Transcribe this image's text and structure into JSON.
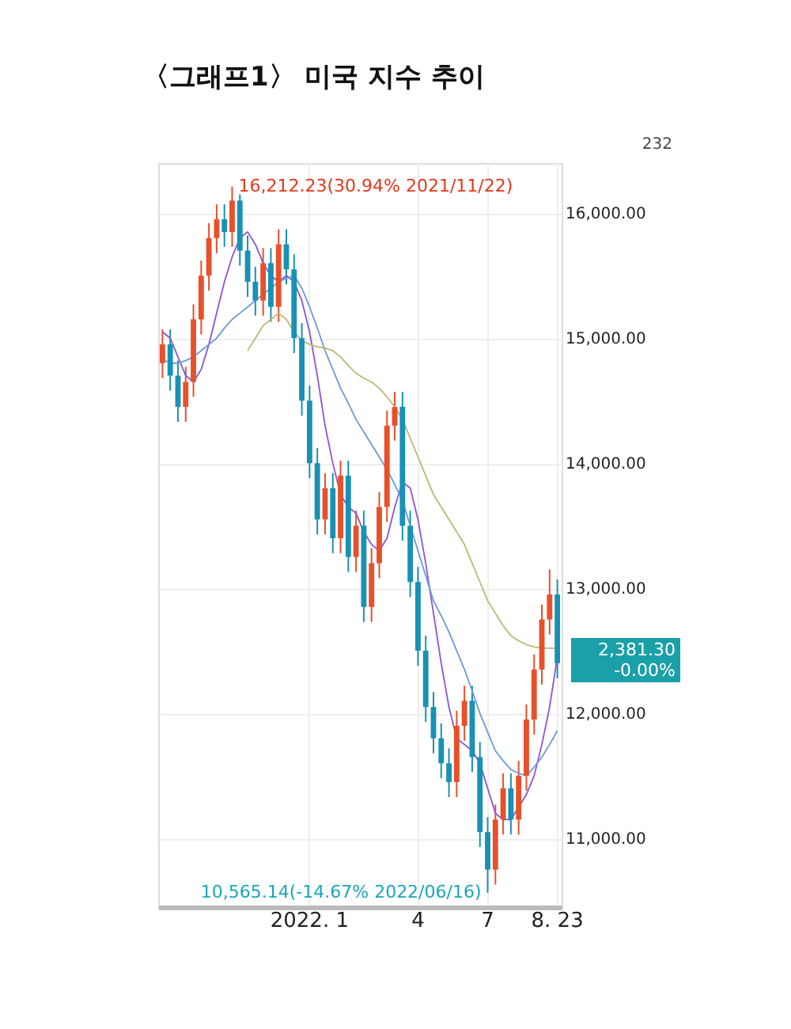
{
  "chart_data": {
    "type": "candlestick",
    "title": "〈그래프1〉 미국 지수 추이",
    "categories": [
      null,
      null,
      null,
      null,
      null,
      null,
      null,
      null,
      null,
      null,
      null,
      null,
      null,
      null,
      null,
      null,
      null,
      null,
      null,
      "2022. 1",
      null,
      null,
      null,
      null,
      null,
      null,
      null,
      null,
      null,
      null,
      null,
      null,
      null,
      "4",
      null,
      null,
      null,
      null,
      null,
      null,
      null,
      null,
      "7",
      null,
      null,
      null,
      null,
      null,
      null,
      null,
      null,
      "8. 23"
    ],
    "ohlc": [
      [
        14800,
        15070,
        14680,
        14950
      ],
      [
        14950,
        15070,
        14580,
        14700
      ],
      [
        14700,
        14820,
        14330,
        14450
      ],
      [
        14450,
        14770,
        14330,
        14650
      ],
      [
        14650,
        15270,
        14530,
        15150
      ],
      [
        15150,
        15620,
        15030,
        15500
      ],
      [
        15500,
        15920,
        15380,
        15800
      ],
      [
        15800,
        16070,
        15680,
        15950
      ],
      [
        15950,
        16070,
        15730,
        15850
      ],
      [
        15850,
        16212.23,
        15730,
        16100
      ],
      [
        16100,
        16150,
        15580,
        15700
      ],
      [
        15700,
        15820,
        15330,
        15450
      ],
      [
        15450,
        15570,
        15180,
        15300
      ],
      [
        15300,
        15720,
        15180,
        15600
      ],
      [
        15600,
        15720,
        15130,
        15250
      ],
      [
        15250,
        15870,
        15130,
        15750
      ],
      [
        15750,
        15870,
        15430,
        15550
      ],
      [
        15550,
        15670,
        14880,
        15000
      ],
      [
        15000,
        15120,
        14380,
        14500
      ],
      [
        14500,
        14620,
        13880,
        14000
      ],
      [
        14000,
        14120,
        13430,
        13550
      ],
      [
        13550,
        13920,
        13430,
        13800
      ],
      [
        13800,
        13920,
        13280,
        13400
      ],
      [
        13400,
        14020,
        13280,
        13900
      ],
      [
        13900,
        14020,
        13130,
        13250
      ],
      [
        13250,
        13620,
        13130,
        13500
      ],
      [
        13500,
        13620,
        12730,
        12850
      ],
      [
        12850,
        13320,
        12730,
        13200
      ],
      [
        13200,
        13770,
        13080,
        13650
      ],
      [
        13650,
        14420,
        13530,
        14300
      ],
      [
        14300,
        14570,
        14180,
        14450
      ],
      [
        14450,
        14570,
        13380,
        13500
      ],
      [
        13500,
        13620,
        12930,
        13050
      ],
      [
        13050,
        13170,
        12380,
        12500
      ],
      [
        12500,
        12620,
        11930,
        12050
      ],
      [
        12050,
        12170,
        11680,
        11800
      ],
      [
        11800,
        11920,
        11480,
        11600
      ],
      [
        11600,
        11720,
        11330,
        11450
      ],
      [
        11450,
        12020,
        11330,
        11900
      ],
      [
        11900,
        12220,
        11780,
        12100
      ],
      [
        12100,
        12220,
        11530,
        11650
      ],
      [
        11650,
        11770,
        10930,
        11050
      ],
      [
        11050,
        11170,
        10565.14,
        10750
      ],
      [
        10750,
        11270,
        10630,
        11150
      ],
      [
        11150,
        11520,
        11030,
        11400
      ],
      [
        11400,
        11520,
        11030,
        11150
      ],
      [
        11150,
        11620,
        11030,
        11500
      ],
      [
        11500,
        12070,
        11380,
        11950
      ],
      [
        11950,
        12470,
        11830,
        12350
      ],
      [
        12350,
        12870,
        12230,
        12750
      ],
      [
        12750,
        13150,
        12630,
        12950
      ],
      [
        12950,
        13070,
        12280,
        12400
      ]
    ],
    "colors": [
      "#e8502a",
      "#1991b5",
      "#1991b5",
      "#e8502a",
      "#e8502a",
      "#e8502a",
      "#e8502a",
      "#e8502a",
      "#1991b5",
      "#e8502a",
      "#1991b5",
      "#1991b5",
      "#1991b5",
      "#e8502a",
      "#1991b5",
      "#e8502a",
      "#1991b5",
      "#1991b5",
      "#1991b5",
      "#1991b5",
      "#1991b5",
      "#e8502a",
      "#1991b5",
      "#e8502a",
      "#1991b5",
      "#e8502a",
      "#1991b5",
      "#e8502a",
      "#e8502a",
      "#e8502a",
      "#e8502a",
      "#1991b5",
      "#1991b5",
      "#1991b5",
      "#1991b5",
      "#1991b5",
      "#1991b5",
      "#1991b5",
      "#e8502a",
      "#e8502a",
      "#1991b5",
      "#1991b5",
      "#1991b5",
      "#e8502a",
      "#e8502a",
      "#1991b5",
      "#e8502a",
      "#e8502a",
      "#e8502a",
      "#e8502a",
      "#e8502a",
      "#1991b5"
    ],
    "series": [
      {
        "type": "line",
        "color": "#8a55d6",
        "values": [
          15050,
          15000,
          14850,
          14700,
          14650,
          14750,
          14950,
          15200,
          15450,
          15650,
          15800,
          15850,
          15750,
          15600,
          15500,
          15450,
          15500,
          15450,
          15300,
          15050,
          14700,
          14300,
          14000,
          13750,
          13650,
          13600,
          13450,
          13350,
          13300,
          13400,
          13650,
          13850,
          13800,
          13550,
          13200,
          12800,
          12400,
          12050,
          11800,
          11750,
          11700,
          11600,
          11400,
          11200,
          11150,
          11150,
          11250,
          11350,
          11500,
          11750,
          12050,
          12450
        ]
      },
      {
        "type": "line",
        "color": "#6a9ad8",
        "values": [
          14830,
          14800,
          14800,
          14820,
          14850,
          14900,
          14950,
          15000,
          15080,
          15150,
          15200,
          15250,
          15300,
          15350,
          15400,
          15450,
          15480,
          15500,
          15400,
          15250,
          15080,
          14900,
          14750,
          14600,
          14480,
          14350,
          14250,
          14150,
          14050,
          13950,
          13830,
          13700,
          13500,
          13300,
          13100,
          12900,
          12780,
          12650,
          12500,
          12350,
          12180,
          12000,
          11850,
          11700,
          11620,
          11550,
          11520,
          11500,
          11570,
          11650,
          11750,
          11860
        ]
      },
      {
        "type": "line",
        "color": "#bdb874",
        "values": [
          null,
          null,
          null,
          null,
          null,
          null,
          null,
          null,
          null,
          null,
          null,
          14900,
          15000,
          15100,
          15150,
          15200,
          15150,
          15050,
          14980,
          14950,
          14930,
          14920,
          14900,
          14850,
          14780,
          14720,
          14680,
          14650,
          14600,
          14530,
          14450,
          14350,
          14200,
          14050,
          13900,
          13750,
          13650,
          13550,
          13450,
          13350,
          13200,
          13050,
          12900,
          12800,
          12700,
          12620,
          12580,
          12550,
          12530,
          12520,
          12520,
          12520
        ]
      }
    ],
    "ylim": [
      10450,
      16400
    ],
    "yticks": [
      {
        "value": 11000,
        "label": "11,000.00"
      },
      {
        "value": 12000,
        "label": "12,000.00"
      },
      {
        "value": 13000,
        "label": "13,000.00"
      },
      {
        "value": 14000,
        "label": "14,000.00"
      },
      {
        "value": 15000,
        "label": "15,000.00"
      },
      {
        "value": 16000,
        "label": "16,000.00"
      }
    ],
    "grid": true,
    "annotations": [
      "16,212.23(30.94% 2021/11/22)",
      "10,565.14(-14.67% 2022/06/16)",
      "232",
      "2,381.30\n-0.00%"
    ]
  }
}
